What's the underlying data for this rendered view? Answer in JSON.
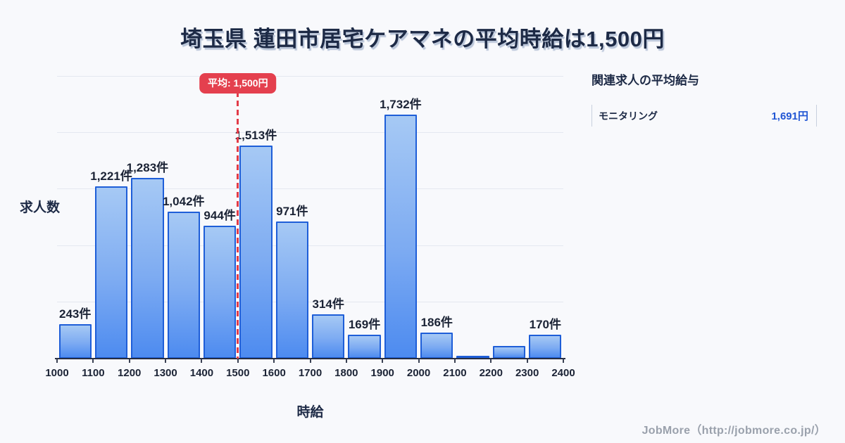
{
  "title": "埼玉県 蓮田市居宅ケアマネの平均時給は1,500円",
  "chart_data": {
    "type": "bar",
    "title": "埼玉県 蓮田市居宅ケアマネの平均時給は1,500円",
    "xlabel": "時給",
    "ylabel": "求人数",
    "xlim": [
      1000,
      2400
    ],
    "ylim": [
      0,
      2040
    ],
    "grid": true,
    "gridline_interval": 400,
    "bin_width": 100,
    "average_line": {
      "value": 1500,
      "label": "平均: 1,500円"
    },
    "bins": [
      {
        "start": 1000,
        "end": 1100,
        "value": 243,
        "label": "243件"
      },
      {
        "start": 1100,
        "end": 1200,
        "value": 1221,
        "label": "1,221件"
      },
      {
        "start": 1200,
        "end": 1300,
        "value": 1283,
        "label": "1,283件"
      },
      {
        "start": 1300,
        "end": 1400,
        "value": 1042,
        "label": "1,042件"
      },
      {
        "start": 1400,
        "end": 1500,
        "value": 944,
        "label": "944件"
      },
      {
        "start": 1500,
        "end": 1600,
        "value": 1513,
        "label": "1,513件"
      },
      {
        "start": 1600,
        "end": 1700,
        "value": 971,
        "label": "971件"
      },
      {
        "start": 1700,
        "end": 1800,
        "value": 314,
        "label": "314件"
      },
      {
        "start": 1800,
        "end": 1900,
        "value": 169,
        "label": "169件"
      },
      {
        "start": 1800,
        "end": 1900,
        "value": 1732,
        "label": "1,732件"
      },
      {
        "start": 1900,
        "end": 2000,
        "value": 186,
        "label": "186件"
      },
      {
        "start": 2100,
        "end": 2200,
        "value": 15,
        "label": ""
      },
      {
        "start": 2200,
        "end": 2300,
        "value": 90,
        "label": ""
      },
      {
        "start": 2300,
        "end": 2400,
        "value": 170,
        "label": "170件"
      }
    ],
    "x_tick_labels": [
      "1000",
      "1100",
      "1200",
      "1300",
      "1400",
      "1500",
      "1600",
      "1700",
      "1800",
      "1900",
      "2000",
      "2100",
      "2200",
      "2300",
      "2400"
    ]
  },
  "side_panel": {
    "heading": "関連求人の平均給与",
    "rows": [
      {
        "label": "モニタリング",
        "value": "1,691円"
      }
    ]
  },
  "footer": {
    "credit": "JobMore（http://jobmore.co.jp/）"
  },
  "colors": {
    "background": "#f8f9fc",
    "title_text": "#1d2a46",
    "bar_fill_top": "#a6c9f4",
    "bar_fill_bottom": "#4d8bf0",
    "bar_border": "#1e5ed8",
    "average_red": "#e4404e",
    "value_blue": "#2156d4",
    "axis": "#272e42",
    "gridline": "#e4e8f0",
    "footer_text": "#9aa1ac"
  }
}
